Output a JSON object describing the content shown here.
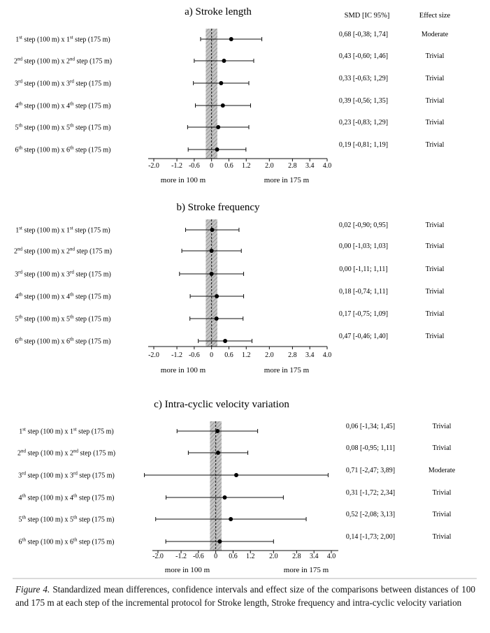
{
  "header": {
    "smd_label": "SMD [IC 95%]",
    "effect_label": "Effect size"
  },
  "caption": {
    "label": "Figure 4.",
    "text": "Standardized mean differences, confidence intervals and effect size of the comparisons between distances of 100 and 175 m at each step of the incremental protocol for Stroke length, Stroke frequency and intra-cyclic velocity variation"
  },
  "chart_data": [
    {
      "type": "forest",
      "title": "a) Stroke length",
      "xlim": [
        -2.0,
        4.0
      ],
      "xticks": [
        -2.0,
        -1.2,
        -0.6,
        0,
        0.6,
        1.2,
        2.0,
        2.8,
        3.4,
        4.0
      ],
      "xtick_labels": [
        "-2.0",
        "-1.2",
        "-0.6",
        "0",
        "0.6",
        "1.2",
        "2.0",
        "2.8",
        "3.4",
        "4.0"
      ],
      "band": [
        -0.2,
        0.2
      ],
      "direction_left": "more in 100 m",
      "direction_right": "more in 175 m",
      "rows": [
        {
          "ord": "1",
          "sup": "st",
          "mean": 0.68,
          "lo": -0.38,
          "hi": 1.74,
          "smd_text": "0,68 [-0,38; 1,74]",
          "effect": "Moderate"
        },
        {
          "ord": "2",
          "sup": "nd",
          "mean": 0.43,
          "lo": -0.6,
          "hi": 1.46,
          "smd_text": "0,43 [-0,60; 1,46]",
          "effect": "Trivial"
        },
        {
          "ord": "3",
          "sup": "rd",
          "mean": 0.33,
          "lo": -0.63,
          "hi": 1.29,
          "smd_text": "0,33 [-0,63; 1,29]",
          "effect": "Trivial"
        },
        {
          "ord": "4",
          "sup": "th",
          "mean": 0.39,
          "lo": -0.56,
          "hi": 1.35,
          "smd_text": "0,39 [-0,56; 1,35]",
          "effect": "Trivial"
        },
        {
          "ord": "5",
          "sup": "th",
          "mean": 0.23,
          "lo": -0.83,
          "hi": 1.29,
          "smd_text": "0,23 [-0,83; 1,29]",
          "effect": "Trivial"
        },
        {
          "ord": "6",
          "sup": "th",
          "mean": 0.19,
          "lo": -0.81,
          "hi": 1.19,
          "smd_text": "0,19 [-0,81; 1,19]",
          "effect": "Trivial"
        }
      ]
    },
    {
      "type": "forest",
      "title": "b) Stroke frequency",
      "xlim": [
        -2.0,
        4.0
      ],
      "xticks": [
        -2.0,
        -1.2,
        -0.6,
        0,
        0.6,
        1.2,
        2.0,
        2.8,
        3.4,
        4.0
      ],
      "xtick_labels": [
        "-2.0",
        "-1.2",
        "-0.6",
        "0",
        "0.6",
        "1.2",
        "2.0",
        "2.8",
        "3.4",
        "4.0"
      ],
      "band": [
        -0.2,
        0.2
      ],
      "direction_left": "more in 100 m",
      "direction_right": "more in 175 m",
      "rows": [
        {
          "ord": "1",
          "sup": "st",
          "mean": 0.02,
          "lo": -0.9,
          "hi": 0.95,
          "smd_text": "0,02 [-0,90; 0,95]",
          "effect": "Trivial"
        },
        {
          "ord": "2",
          "sup": "nd",
          "mean": 0.0,
          "lo": -1.03,
          "hi": 1.03,
          "smd_text": "0,00 [-1,03; 1,03]",
          "effect": "Trivial"
        },
        {
          "ord": "3",
          "sup": "rd",
          "mean": 0.0,
          "lo": -1.11,
          "hi": 1.11,
          "smd_text": "0,00 [-1,11; 1,11]",
          "effect": "Trivial"
        },
        {
          "ord": "4",
          "sup": "th",
          "mean": 0.18,
          "lo": -0.74,
          "hi": 1.11,
          "smd_text": "0,18 [-0,74; 1,11]",
          "effect": "Trivial"
        },
        {
          "ord": "5",
          "sup": "th",
          "mean": 0.17,
          "lo": -0.75,
          "hi": 1.09,
          "smd_text": "0,17 [-0,75; 1,09]",
          "effect": "Trivial"
        },
        {
          "ord": "6",
          "sup": "th",
          "mean": 0.47,
          "lo": -0.46,
          "hi": 1.4,
          "smd_text": "0,47 [-0,46; 1,40]",
          "effect": "Trivial"
        }
      ]
    },
    {
      "type": "forest",
      "title": "c) Intra-cyclic velocity variation",
      "xlim": [
        -2.0,
        4.0
      ],
      "xticks": [
        -2.0,
        -1.2,
        -0.6,
        0,
        0.6,
        1.2,
        2.0,
        2.8,
        3.4,
        4.0
      ],
      "xtick_labels": [
        "-2.0",
        "-1.2",
        "-0.6",
        "0",
        "0.6",
        "1.2",
        "2.0",
        "2.8",
        "3.4",
        "4.0"
      ],
      "band": [
        -0.2,
        0.2
      ],
      "direction_left": "more in 100 m",
      "direction_right": "more in 175 m",
      "rows": [
        {
          "ord": "1",
          "sup": "st",
          "mean": 0.06,
          "lo": -1.34,
          "hi": 1.45,
          "smd_text": "0,06 [-1,34; 1,45]",
          "effect": "Trivial"
        },
        {
          "ord": "2",
          "sup": "nd",
          "mean": 0.08,
          "lo": -0.95,
          "hi": 1.11,
          "smd_text": "0,08 [-0,95; 1,11]",
          "effect": "Trivial"
        },
        {
          "ord": "3",
          "sup": "rd",
          "mean": 0.71,
          "lo": -2.47,
          "hi": 3.89,
          "smd_text": "0,71 [-2,47; 3,89]",
          "effect": "Moderate"
        },
        {
          "ord": "4",
          "sup": "th",
          "mean": 0.31,
          "lo": -1.72,
          "hi": 2.34,
          "smd_text": "0,31 [-1,72; 2,34]",
          "effect": "Trivial"
        },
        {
          "ord": "5",
          "sup": "th",
          "mean": 0.52,
          "lo": -2.08,
          "hi": 3.13,
          "smd_text": "0,52 [-2,08; 3,13]",
          "effect": "Trivial"
        },
        {
          "ord": "6",
          "sup": "th",
          "mean": 0.14,
          "lo": -1.73,
          "hi": 2.0,
          "smd_text": "0,14 [-1,73; 2,00]",
          "effect": "Trivial"
        }
      ]
    }
  ]
}
